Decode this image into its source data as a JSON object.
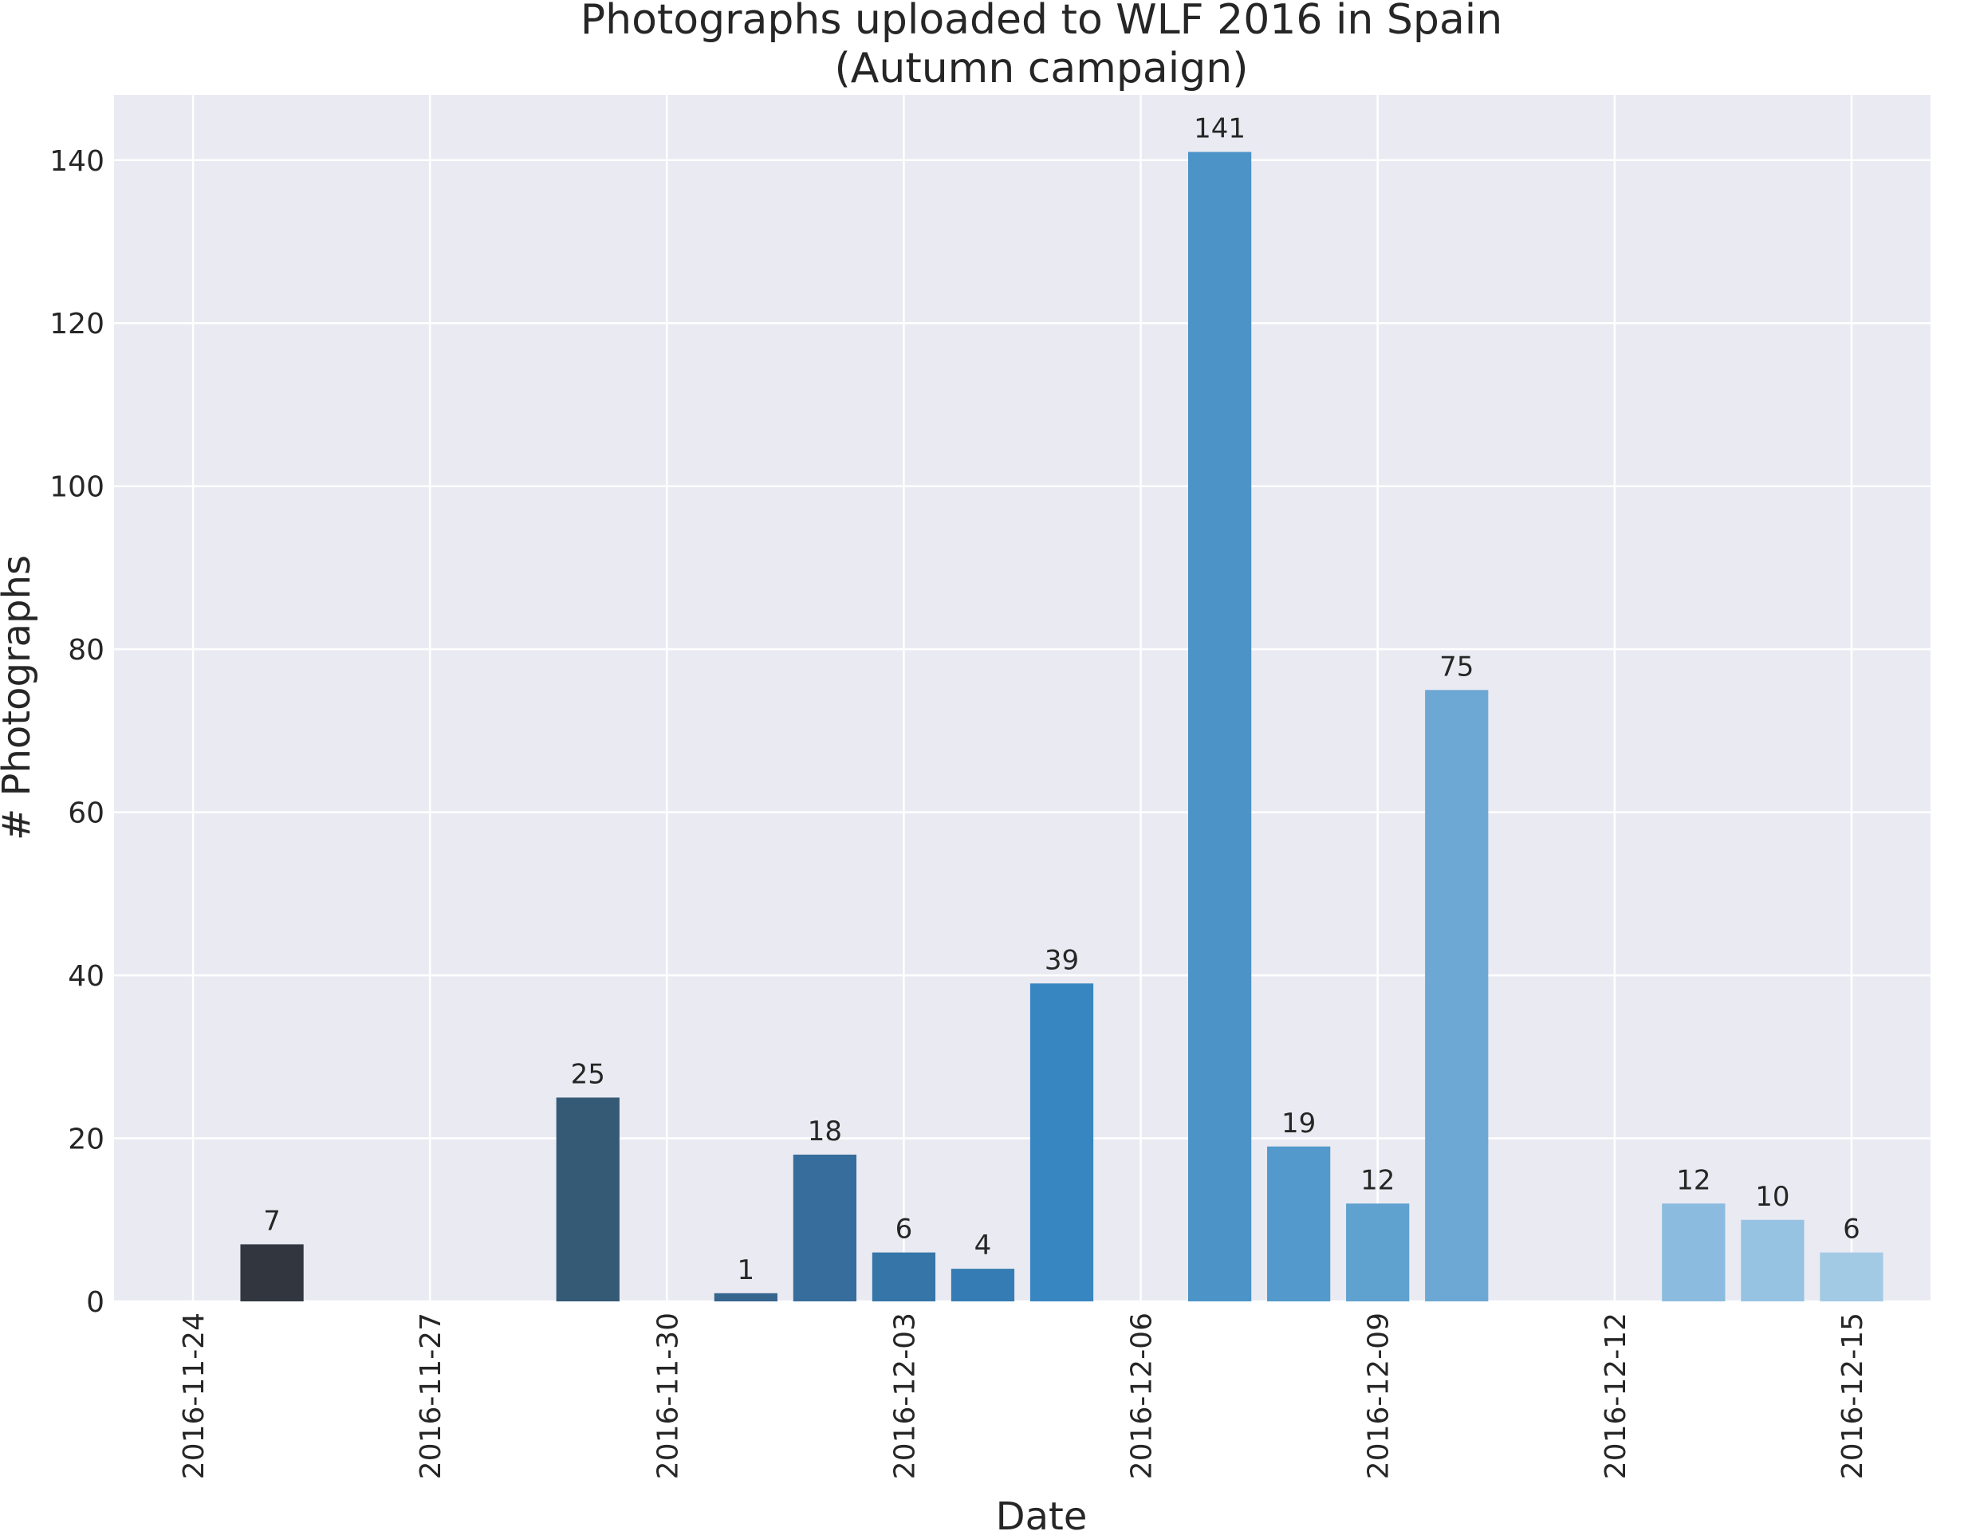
{
  "chart_data": {
    "type": "bar",
    "title_lines": [
      "Photographs uploaded to WLF 2016 in Spain",
      "(Autumn campaign)"
    ],
    "xlabel": "Date",
    "ylabel": "# Photographs",
    "x_axis": "date",
    "xlim": [
      "2016-11-23",
      "2016-12-16"
    ],
    "ylim": [
      0,
      148
    ],
    "xticks": [
      "2016-11-24",
      "2016-11-27",
      "2016-11-30",
      "2016-12-03",
      "2016-12-06",
      "2016-12-09",
      "2016-12-12",
      "2016-12-15"
    ],
    "yticks": [
      0,
      20,
      40,
      60,
      80,
      100,
      120,
      140
    ],
    "grid": true,
    "data_labels": true,
    "bars": [
      {
        "date": "2016-11-25",
        "value": 7,
        "label": "7",
        "color": "#32373f"
      },
      {
        "date": "2016-11-29",
        "value": 25,
        "label": "25",
        "color": "#345a75"
      },
      {
        "date": "2016-12-01",
        "value": 1,
        "label": "1",
        "color": "#36658e"
      },
      {
        "date": "2016-12-02",
        "value": 18,
        "label": "18",
        "color": "#376d9c"
      },
      {
        "date": "2016-12-03",
        "value": 6,
        "label": "6",
        "color": "#3575a7"
      },
      {
        "date": "2016-12-04",
        "value": 4,
        "label": "4",
        "color": "#367cb4"
      },
      {
        "date": "2016-12-05",
        "value": 39,
        "label": "39",
        "color": "#3886c1"
      },
      {
        "date": "2016-12-07",
        "value": 141,
        "label": "141",
        "color": "#4c93c7"
      },
      {
        "date": "2016-12-08",
        "value": 19,
        "label": "19",
        "color": "#5399cb"
      },
      {
        "date": "2016-12-09",
        "value": 12,
        "label": "12",
        "color": "#5fa1cf"
      },
      {
        "date": "2016-12-10",
        "value": 75,
        "label": "75",
        "color": "#6da8d4"
      },
      {
        "date": "2016-12-13",
        "value": 12,
        "label": "12",
        "color": "#8bbcdf"
      },
      {
        "date": "2016-12-14",
        "value": 10,
        "label": "10",
        "color": "#97c3e3"
      },
      {
        "date": "2016-12-15",
        "value": 6,
        "label": "6",
        "color": "#a3cae5"
      }
    ],
    "colors": {
      "plot_background": "#eaeaf2",
      "grid": "#ffffff",
      "text": "#262626"
    }
  }
}
